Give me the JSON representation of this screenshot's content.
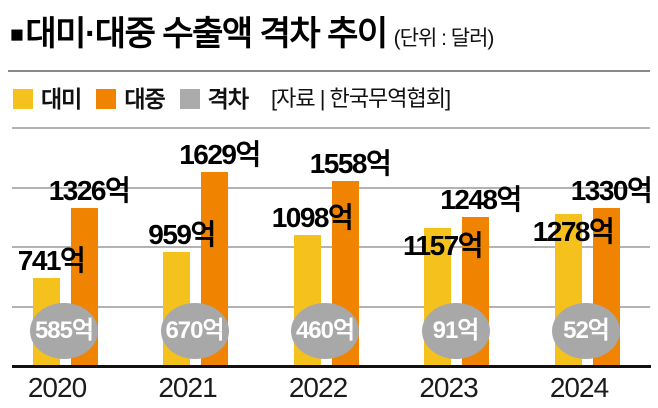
{
  "header": {
    "bullet": "■",
    "title": "대미·대중 수출액 격차 추이",
    "unit": "(단위 : 달러)"
  },
  "legend": {
    "items": [
      {
        "label": "대미",
        "color": "#f5c11c"
      },
      {
        "label": "대중",
        "color": "#f08300"
      },
      {
        "label": "격차",
        "color": "#ababab"
      }
    ],
    "source": "[자료 | 한국무역협회]"
  },
  "chart_data": {
    "type": "bar",
    "title": "대미·대중 수출액 격차 추이",
    "unit_note": "(단위 : 달러)",
    "categories": [
      "2020",
      "2021",
      "2022",
      "2023",
      "2024"
    ],
    "series": [
      {
        "name": "대미",
        "color": "#f5c11c",
        "values": [
          741,
          959,
          1098,
          1157,
          1278
        ]
      },
      {
        "name": "대중",
        "color": "#f08300",
        "values": [
          1326,
          1629,
          1558,
          1248,
          1330
        ]
      }
    ],
    "gap_series": {
      "name": "격차",
      "color": "#a8a8a8",
      "values": [
        585,
        670,
        460,
        91,
        52
      ]
    },
    "value_suffix": "억",
    "ylim": [
      0,
      2000
    ],
    "gridline_step": 500,
    "grid": true,
    "legend_position": "top"
  },
  "colors": {
    "background": "#ffffff",
    "us_bar": "#f5c11c",
    "china_bar": "#f08300",
    "gap_circle": "#a8a8a8",
    "gridline": "#b3b3b3",
    "baseline": "#111111",
    "separator": "#8a8a8a",
    "value_label": "#000000",
    "circle_text": "#ffffff"
  }
}
